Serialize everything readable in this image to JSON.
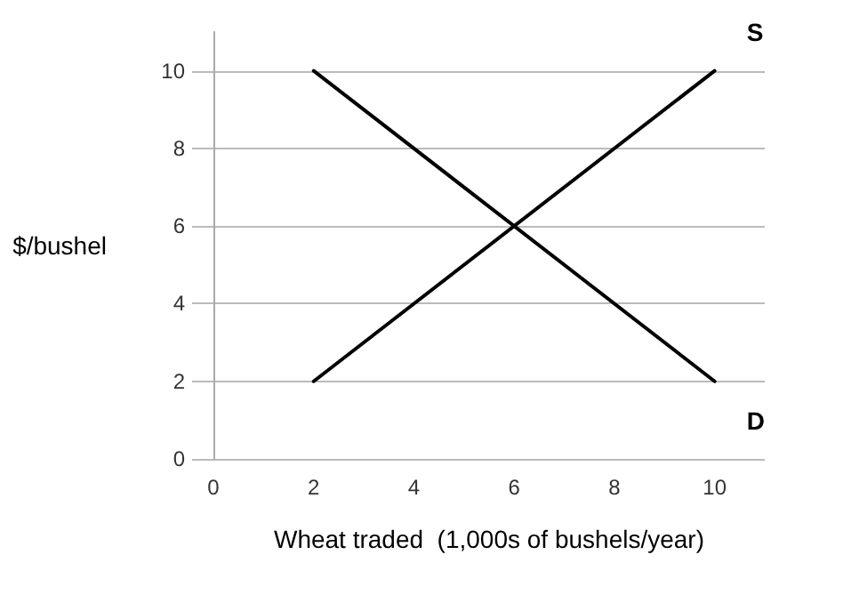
{
  "chart_data": {
    "type": "line",
    "xlabel": "Wheat traded  (1,000s of bushels/year)",
    "ylabel": "$/bushel",
    "x": [
      2,
      10
    ],
    "series": [
      {
        "name": "S",
        "color": "#000000",
        "values": [
          2,
          10
        ]
      },
      {
        "name": "D",
        "color": "#000000",
        "values": [
          10,
          2
        ]
      }
    ],
    "xlim": [
      0,
      11
    ],
    "xticks": [
      0,
      2,
      4,
      6,
      8,
      10
    ],
    "ylim": [
      0,
      11
    ],
    "yticks": [
      0,
      2,
      4,
      6,
      8,
      10
    ],
    "grid": "y",
    "legend": false,
    "marker": "none",
    "line_style": "solid"
  }
}
